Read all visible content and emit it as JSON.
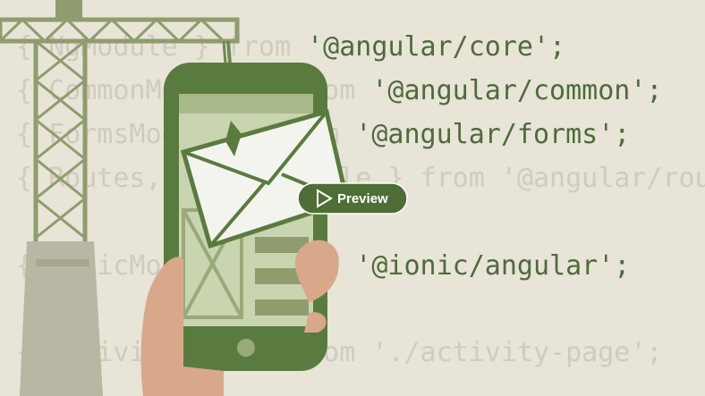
{
  "code_lines": [
    {
      "prefix": "{ NgModule } from ",
      "module": "'@angular/core'",
      "suffix": ";",
      "module_color": "#4e6b3a"
    },
    {
      "prefix": "{ CommonModule } from ",
      "module": "'@angular/common'",
      "suffix": ";",
      "module_color": "#4e6b3a"
    },
    {
      "prefix": "{ FormsModule } from ",
      "module": "'@angular/forms'",
      "suffix": ";",
      "module_color": "#4e6b3a"
    },
    {
      "prefix": "{ Routes, RouterModule } from ",
      "module": "'@angular/router'",
      "suffix": ";",
      "module_color": "#cfcbbd"
    },
    {
      "prefix": "{ IonicModule } from ",
      "module": "'@ionic/angular'",
      "suffix": ";",
      "module_color": "#4e6b3a"
    },
    {
      "prefix": "{ ActivityPage } from ",
      "module": "'./activity-page'",
      "suffix": ";",
      "module_color": "#cfcbbd"
    }
  ],
  "button": {
    "label": "Preview"
  }
}
